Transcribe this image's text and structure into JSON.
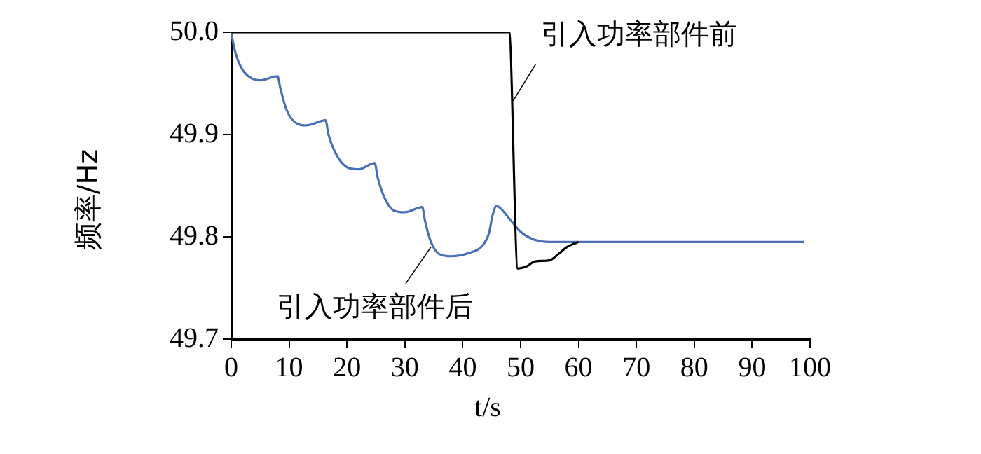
{
  "chart_data": {
    "type": "line",
    "xlabel": "t/s",
    "ylabel": "频率/Hz",
    "xlim": [
      0,
      100
    ],
    "xticks": [
      0,
      10,
      20,
      30,
      40,
      50,
      60,
      70,
      80,
      90,
      100
    ],
    "ylim": [
      49.7,
      50.0
    ],
    "yticks": [
      {
        "value": 49.7,
        "label": "49.7"
      },
      {
        "value": 49.8,
        "label": "49.8"
      },
      {
        "value": 49.9,
        "label": "49.9"
      },
      {
        "value": 50.0,
        "label": "50.0"
      }
    ],
    "grid": false,
    "legend": false,
    "marker": "none",
    "line_style": "solid",
    "series": [
      {
        "color": "#000000",
        "x": [
          0,
          48,
          49.5,
          51,
          52.5,
          55,
          56.5,
          58,
          60
        ],
        "values": [
          50.0,
          50.0,
          49.769,
          49.771,
          49.776,
          49.777,
          49.783,
          49.79,
          49.795
        ]
      },
      {
        "color": "#4a6fb5",
        "x": [
          0,
          0.5,
          1,
          2,
          3.5,
          5,
          8,
          8.5,
          9.5,
          11,
          13,
          16.3,
          16.8,
          18,
          20,
          22,
          24.8,
          25.3,
          26.5,
          28,
          30,
          33,
          33.5,
          34.5,
          36,
          38,
          41,
          43.5,
          44.5,
          45.2,
          45.8,
          46.5,
          48,
          50,
          52,
          55,
          60,
          80,
          99
        ],
        "values": [
          50.0,
          49.985,
          49.975,
          49.963,
          49.955,
          49.953,
          49.957,
          49.945,
          49.925,
          49.912,
          49.909,
          49.914,
          49.9,
          49.882,
          49.868,
          49.866,
          49.872,
          49.858,
          49.838,
          49.826,
          49.824,
          49.829,
          49.815,
          49.795,
          49.783,
          49.781,
          49.784,
          49.792,
          49.803,
          49.822,
          49.83,
          49.828,
          49.818,
          49.805,
          49.798,
          49.795,
          49.795,
          49.795,
          49.795
        ]
      }
    ],
    "annotations": [
      {
        "text": "引入功率部件前",
        "x": 48.7,
        "y": 49.933
      },
      {
        "text": "引入功率部件后",
        "x": 34.5,
        "y": 49.79
      }
    ]
  }
}
